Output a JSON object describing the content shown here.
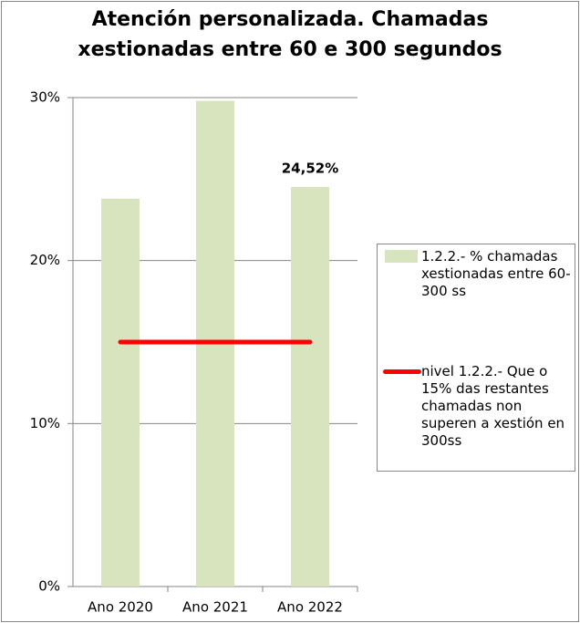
{
  "chart_data": {
    "type": "bar",
    "title": "Atención personalizada. Chamadas xestionadas entre 60 e 300 segundos",
    "categories": [
      "Ano 2020",
      "Ano 2021",
      "Ano 2022"
    ],
    "series": [
      {
        "name": "1.2.2.- % chamadas xestionadas entre 60-300 ss",
        "type": "bar",
        "color": "#d7e4bd",
        "values": [
          23.8,
          29.8,
          24.52
        ],
        "value_labels": [
          null,
          null,
          "24,52%"
        ]
      },
      {
        "name": "nivel 1.2.2.- Que o 15% das restantes chamadas non superen a xestión en 300ss",
        "type": "line",
        "color": "#ff0000",
        "values": [
          15,
          15,
          15
        ]
      }
    ],
    "ylim": [
      0,
      30
    ],
    "yticks": [
      {
        "value": 0,
        "label": "0%"
      },
      {
        "value": 10,
        "label": "10%"
      },
      {
        "value": 20,
        "label": "20%"
      },
      {
        "value": 30,
        "label": "30%"
      }
    ],
    "grid": true,
    "legend": "right"
  }
}
